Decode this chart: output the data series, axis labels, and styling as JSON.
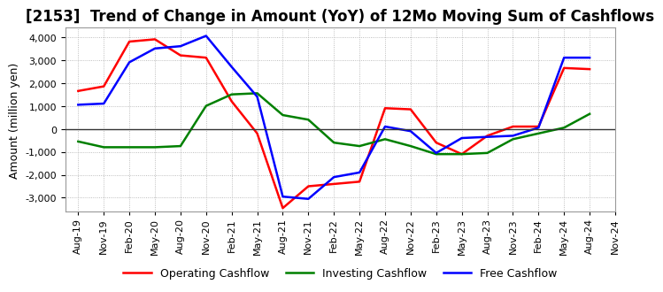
{
  "title": "[2153]  Trend of Change in Amount (YoY) of 12Mo Moving Sum of Cashflows",
  "ylabel": "Amount (million yen)",
  "ylim": [
    -3600,
    4400
  ],
  "yticks": [
    -3000,
    -2000,
    -1000,
    0,
    1000,
    2000,
    3000,
    4000
  ],
  "x_labels": [
    "Aug-19",
    "Nov-19",
    "Feb-20",
    "May-20",
    "Aug-20",
    "Nov-20",
    "Feb-21",
    "May-21",
    "Aug-21",
    "Nov-21",
    "Feb-22",
    "May-22",
    "Aug-22",
    "Nov-22",
    "Feb-23",
    "May-23",
    "Aug-23",
    "Nov-23",
    "Feb-24",
    "May-24",
    "Aug-24",
    "Nov-24"
  ],
  "operating": [
    1650,
    1850,
    3800,
    3900,
    3200,
    3100,
    1200,
    -200,
    -3450,
    -2500,
    -2400,
    -2300,
    900,
    850,
    -600,
    -1100,
    -300,
    100,
    100,
    2650,
    2600,
    null
  ],
  "investing": [
    -550,
    -800,
    -800,
    -800,
    -750,
    1000,
    1500,
    1550,
    600,
    400,
    -600,
    -750,
    -450,
    -750,
    -1100,
    -1100,
    -1050,
    -450,
    -200,
    50,
    650,
    null
  ],
  "free": [
    1050,
    1100,
    2900,
    3500,
    3600,
    4050,
    2700,
    1400,
    -2950,
    -3050,
    -2100,
    -1900,
    100,
    -100,
    -1050,
    -400,
    -350,
    -300,
    50,
    3100,
    3100,
    null
  ],
  "colors": {
    "operating": "#ff0000",
    "investing": "#008000",
    "free": "#0000ff"
  },
  "background": "#ffffff",
  "grid_color": "#aaaaaa",
  "title_fontsize": 12,
  "label_fontsize": 9,
  "tick_fontsize": 8
}
